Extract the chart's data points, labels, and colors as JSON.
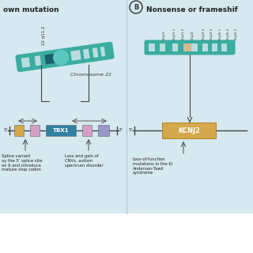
{
  "bg_color": "#d6e8f0",
  "border_color": "#c0d8e8",
  "divider_color": "#b0ccd8",
  "panel_A": {
    "title": "own mutation",
    "chrom_label": "22 q11.2",
    "chrom_label2": "Chromosome 22",
    "chrom_main": "#3aada0",
    "chrom_dark": "#1a5f6a",
    "chrom_light": "#b8dde0",
    "chrom_centromere": "#5ac8c0",
    "gene_name": "TBX1",
    "gene_box_color": "#3080a0",
    "exon_colors": [
      "#d4a84b",
      "#d4a0c8",
      "#d4a0c8",
      "#9898cc"
    ],
    "annotation1": "Splice variant\nay the 5’ splice site\non 9 and introduce\nmature stop codon",
    "annotation2": "Loss and gain of\nCNVs, autism\nspectrum disorder"
  },
  "panel_B": {
    "title": "Nonsense or frameshif",
    "circle_label": "B",
    "chrom_labels": [
      "17q25.3",
      "17q25.2",
      "17q25.1",
      "17q24.3",
      "17q24.2",
      "17q22",
      "17q21.2",
      "17q21.1",
      "17q12"
    ],
    "chrom_main": "#3aada0",
    "chrom_light": "#b8dde0",
    "chrom_tan": "#d4b896",
    "gene_name": "KCNJ2",
    "gene_box_color": "#d4a84b",
    "gene_box_border": "#b88830",
    "annotation": "Loss-of-function\nmutations in the Ki\nAndersen-Tawil\nsyndrome"
  }
}
